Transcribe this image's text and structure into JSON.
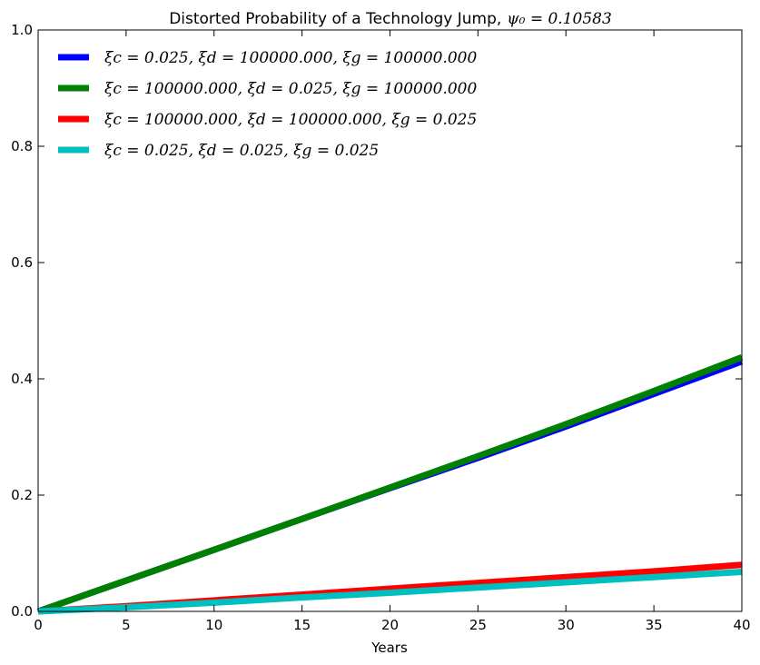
{
  "chart_data": {
    "type": "line",
    "title": "Distorted Probability of a Technology Jump,",
    "title_math": "ψ₀ = 0.10583",
    "xlabel": "Years",
    "ylabel": "",
    "xlim": [
      0,
      40
    ],
    "ylim": [
      0,
      1.0
    ],
    "xticks": [
      0,
      5,
      10,
      15,
      20,
      25,
      30,
      35,
      40
    ],
    "yticks": [
      0.0,
      0.2,
      0.4,
      0.6,
      0.8,
      1.0
    ],
    "xtick_labels": [
      "0",
      "5",
      "10",
      "15",
      "20",
      "25",
      "30",
      "35",
      "40"
    ],
    "ytick_labels": [
      "0.0",
      "0.2",
      "0.4",
      "0.6",
      "0.8",
      "1.0"
    ],
    "grid": false,
    "legend_position": "top-left",
    "series": [
      {
        "name": "ξc = 0.025, ξd = 100000.000, ξg = 100000.000",
        "color": "#0000ff",
        "x": [
          0,
          5,
          10,
          15,
          20,
          25,
          30,
          35,
          40
        ],
        "y": [
          0.0,
          0.053,
          0.106,
          0.159,
          0.212,
          0.264,
          0.318,
          0.374,
          0.43
        ]
      },
      {
        "name": "ξc = 100000.000, ξd = 0.025, ξg = 100000.000",
        "color": "#008000",
        "x": [
          0,
          5,
          10,
          15,
          20,
          25,
          30,
          35,
          40
        ],
        "y": [
          0.0,
          0.053,
          0.106,
          0.159,
          0.213,
          0.267,
          0.322,
          0.379,
          0.437
        ]
      },
      {
        "name": "ξc = 100000.000, ξd = 100000.000, ξg = 0.025",
        "color": "#ff0000",
        "x": [
          0,
          5,
          10,
          15,
          20,
          25,
          30,
          35,
          40
        ],
        "y": [
          0.0,
          0.009,
          0.019,
          0.029,
          0.039,
          0.049,
          0.059,
          0.069,
          0.08
        ]
      },
      {
        "name": "ξc = 0.025, ξd = 0.025, ξg = 0.025",
        "color": "#00bfbf",
        "x": [
          0,
          5,
          10,
          15,
          20,
          25,
          30,
          35,
          40
        ],
        "y": [
          0.0,
          0.007,
          0.015,
          0.024,
          0.032,
          0.041,
          0.05,
          0.059,
          0.068
        ]
      }
    ]
  }
}
